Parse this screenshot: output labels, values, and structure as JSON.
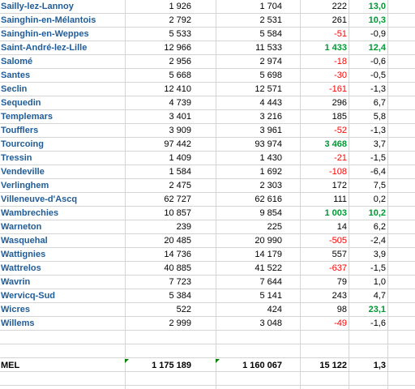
{
  "rows": [
    {
      "name": "Sailly-lez-Lannoy",
      "v1": "1 926",
      "v2": "1 704",
      "diff": "222",
      "pct": "13,0",
      "diff_color": "black",
      "pct_color": "green"
    },
    {
      "name": "Sainghin-en-Mélantois",
      "v1": "2 792",
      "v2": "2 531",
      "diff": "261",
      "pct": "10,3",
      "diff_color": "black",
      "pct_color": "green"
    },
    {
      "name": "Sainghin-en-Weppes",
      "v1": "5 533",
      "v2": "5 584",
      "diff": "-51",
      "pct": "-0,9",
      "diff_color": "red",
      "pct_color": "black"
    },
    {
      "name": "Saint-André-lez-Lille",
      "v1": "12 966",
      "v2": "11 533",
      "diff": "1 433",
      "pct": "12,4",
      "diff_color": "green",
      "pct_color": "green"
    },
    {
      "name": "Salomé",
      "v1": "2 956",
      "v2": "2 974",
      "diff": "-18",
      "pct": "-0,6",
      "diff_color": "red",
      "pct_color": "black"
    },
    {
      "name": "Santes",
      "v1": "5 668",
      "v2": "5 698",
      "diff": "-30",
      "pct": "-0,5",
      "diff_color": "red",
      "pct_color": "black"
    },
    {
      "name": "Seclin",
      "v1": "12 410",
      "v2": "12 571",
      "diff": "-161",
      "pct": "-1,3",
      "diff_color": "red",
      "pct_color": "black"
    },
    {
      "name": "Sequedin",
      "v1": "4 739",
      "v2": "4 443",
      "diff": "296",
      "pct": "6,7",
      "diff_color": "black",
      "pct_color": "black"
    },
    {
      "name": "Templemars",
      "v1": "3 401",
      "v2": "3 216",
      "diff": "185",
      "pct": "5,8",
      "diff_color": "black",
      "pct_color": "black"
    },
    {
      "name": "Toufflers",
      "v1": "3 909",
      "v2": "3 961",
      "diff": "-52",
      "pct": "-1,3",
      "diff_color": "red",
      "pct_color": "black"
    },
    {
      "name": "Tourcoing",
      "v1": "97 442",
      "v2": "93 974",
      "diff": "3 468",
      "pct": "3,7",
      "diff_color": "green",
      "pct_color": "black"
    },
    {
      "name": "Tressin",
      "v1": "1 409",
      "v2": "1 430",
      "diff": "-21",
      "pct": "-1,5",
      "diff_color": "red",
      "pct_color": "black"
    },
    {
      "name": "Vendeville",
      "v1": "1 584",
      "v2": "1 692",
      "diff": "-108",
      "pct": "-6,4",
      "diff_color": "red",
      "pct_color": "black"
    },
    {
      "name": "Verlinghem",
      "v1": "2 475",
      "v2": "2 303",
      "diff": "172",
      "pct": "7,5",
      "diff_color": "black",
      "pct_color": "black"
    },
    {
      "name": "Villeneuve-d'Ascq",
      "v1": "62 727",
      "v2": "62 616",
      "diff": "111",
      "pct": "0,2",
      "diff_color": "black",
      "pct_color": "black"
    },
    {
      "name": "Wambrechies",
      "v1": "10 857",
      "v2": "9 854",
      "diff": "1 003",
      "pct": "10,2",
      "diff_color": "green",
      "pct_color": "green"
    },
    {
      "name": "Warneton",
      "v1": "239",
      "v2": "225",
      "diff": "14",
      "pct": "6,2",
      "diff_color": "black",
      "pct_color": "black"
    },
    {
      "name": "Wasquehal",
      "v1": "20 485",
      "v2": "20 990",
      "diff": "-505",
      "pct": "-2,4",
      "diff_color": "red",
      "pct_color": "black"
    },
    {
      "name": "Wattignies",
      "v1": "14 736",
      "v2": "14 179",
      "diff": "557",
      "pct": "3,9",
      "diff_color": "black",
      "pct_color": "black"
    },
    {
      "name": "Wattrelos",
      "v1": "40 885",
      "v2": "41 522",
      "diff": "-637",
      "pct": "-1,5",
      "diff_color": "red",
      "pct_color": "black"
    },
    {
      "name": "Wavrin",
      "v1": "7 723",
      "v2": "7 644",
      "diff": "79",
      "pct": "1,0",
      "diff_color": "black",
      "pct_color": "black"
    },
    {
      "name": "Wervicq-Sud",
      "v1": "5 384",
      "v2": "5 141",
      "diff": "243",
      "pct": "4,7",
      "diff_color": "black",
      "pct_color": "black"
    },
    {
      "name": "Wicres",
      "v1": "522",
      "v2": "424",
      "diff": "98",
      "pct": "23,1",
      "diff_color": "black",
      "pct_color": "green"
    },
    {
      "name": "Willems",
      "v1": "2 999",
      "v2": "3 048",
      "diff": "-49",
      "pct": "-1,6",
      "diff_color": "red",
      "pct_color": "black"
    }
  ],
  "total": {
    "name": "MEL",
    "v1": "1 175 189",
    "v2": "1 160 067",
    "diff": "15 122",
    "pct": "1,3"
  },
  "colors": {
    "name_text": "#1f5c99",
    "negative": "#ff0000",
    "positive_highlight": "#009933",
    "gridline": "#d4d4d4",
    "error_indicator": "#008000"
  }
}
